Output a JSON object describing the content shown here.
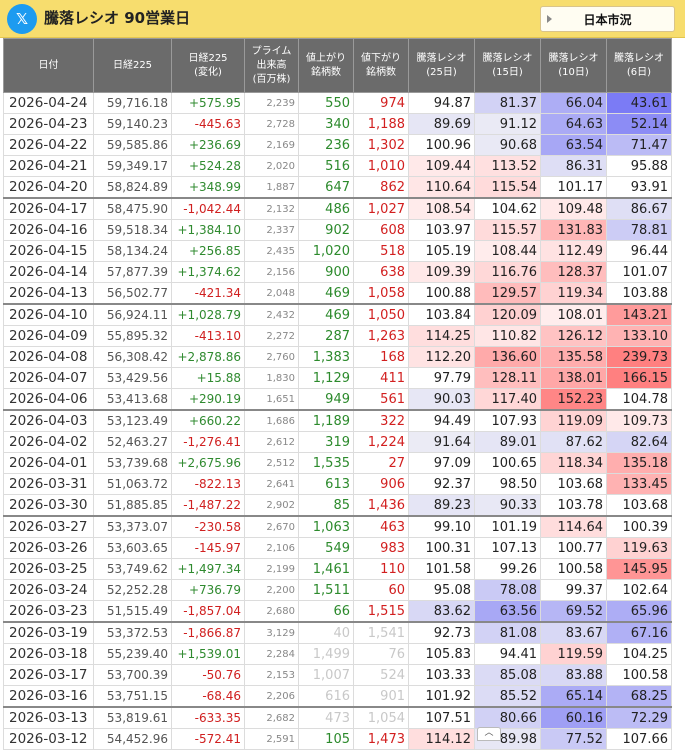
{
  "header": {
    "logo_glyph": "𝕏",
    "title": "騰落レシオ 90営業日",
    "market_select": "日本市況"
  },
  "columns": [
    [
      "日付"
    ],
    [
      "日経225"
    ],
    [
      "日経225",
      "(変化)"
    ],
    [
      "プライム",
      "出来高",
      "(百万株)"
    ],
    [
      "値上がり",
      "銘柄数"
    ],
    [
      "値下がり",
      "銘柄数"
    ],
    [
      "騰落レシオ",
      "(25日)"
    ],
    [
      "騰落レシオ",
      "(15日)"
    ],
    [
      "騰落レシオ",
      "(10日)"
    ],
    [
      "騰落レシオ",
      "(6日)"
    ]
  ],
  "rows": [
    [
      "2026-04-24",
      "59,716.18",
      "+575.95",
      "2,239",
      "550",
      "974",
      "94.87",
      "81.37",
      "66.04",
      "43.61"
    ],
    [
      "2026-04-23",
      "59,140.23",
      "-445.63",
      "2,728",
      "340",
      "1,188",
      "89.69",
      "91.12",
      "64.63",
      "52.14"
    ],
    [
      "2026-04-22",
      "59,585.86",
      "+236.69",
      "2,169",
      "236",
      "1,302",
      "100.96",
      "90.68",
      "63.54",
      "71.47"
    ],
    [
      "2026-04-21",
      "59,349.17",
      "+524.28",
      "2,020",
      "516",
      "1,010",
      "109.44",
      "113.52",
      "86.31",
      "95.88"
    ],
    [
      "2026-04-20",
      "58,824.89",
      "+348.99",
      "1,887",
      "647",
      "862",
      "110.64",
      "115.54",
      "101.17",
      "93.91"
    ],
    [
      "2026-04-17",
      "58,475.90",
      "-1,042.44",
      "2,132",
      "486",
      "1,027",
      "108.54",
      "104.62",
      "109.48",
      "86.67"
    ],
    [
      "2026-04-16",
      "59,518.34",
      "+1,384.10",
      "2,337",
      "902",
      "608",
      "103.97",
      "115.57",
      "131.83",
      "78.81"
    ],
    [
      "2026-04-15",
      "58,134.24",
      "+256.85",
      "2,435",
      "1,020",
      "518",
      "105.19",
      "108.44",
      "112.49",
      "96.44"
    ],
    [
      "2026-04-14",
      "57,877.39",
      "+1,374.62",
      "2,156",
      "900",
      "638",
      "109.39",
      "116.76",
      "128.37",
      "101.07"
    ],
    [
      "2026-04-13",
      "56,502.77",
      "-421.34",
      "2,048",
      "469",
      "1,058",
      "100.88",
      "129.57",
      "119.34",
      "103.88"
    ],
    [
      "2026-04-10",
      "56,924.11",
      "+1,028.79",
      "2,432",
      "469",
      "1,050",
      "103.84",
      "120.09",
      "108.01",
      "143.21"
    ],
    [
      "2026-04-09",
      "55,895.32",
      "-413.10",
      "2,272",
      "287",
      "1,263",
      "114.25",
      "110.82",
      "126.12",
      "133.10"
    ],
    [
      "2026-04-08",
      "56,308.42",
      "+2,878.86",
      "2,760",
      "1,383",
      "168",
      "112.20",
      "136.60",
      "135.58",
      "239.73"
    ],
    [
      "2026-04-07",
      "53,429.56",
      "+15.88",
      "1,830",
      "1,129",
      "411",
      "97.79",
      "128.11",
      "138.01",
      "166.15"
    ],
    [
      "2026-04-06",
      "53,413.68",
      "+290.19",
      "1,651",
      "949",
      "561",
      "90.03",
      "117.40",
      "152.23",
      "104.78"
    ],
    [
      "2026-04-03",
      "53,123.49",
      "+660.22",
      "1,686",
      "1,189",
      "322",
      "94.49",
      "107.93",
      "119.09",
      "109.73"
    ],
    [
      "2026-04-02",
      "52,463.27",
      "-1,276.41",
      "2,612",
      "319",
      "1,224",
      "91.64",
      "89.01",
      "87.62",
      "82.64"
    ],
    [
      "2026-04-01",
      "53,739.68",
      "+2,675.96",
      "2,512",
      "1,535",
      "27",
      "97.09",
      "100.65",
      "118.34",
      "135.18"
    ],
    [
      "2026-03-31",
      "51,063.72",
      "-822.13",
      "2,641",
      "613",
      "906",
      "92.37",
      "98.50",
      "103.68",
      "133.45"
    ],
    [
      "2026-03-30",
      "51,885.85",
      "-1,487.22",
      "2,902",
      "85",
      "1,436",
      "89.23",
      "90.33",
      "103.78",
      "103.68"
    ],
    [
      "2026-03-27",
      "53,373.07",
      "-230.58",
      "2,670",
      "1,063",
      "463",
      "99.10",
      "101.19",
      "114.64",
      "100.39"
    ],
    [
      "2026-03-26",
      "53,603.65",
      "-145.97",
      "2,106",
      "549",
      "983",
      "100.31",
      "107.13",
      "100.77",
      "119.63"
    ],
    [
      "2026-03-25",
      "53,749.62",
      "+1,497.34",
      "2,199",
      "1,461",
      "110",
      "101.58",
      "99.26",
      "100.58",
      "145.95"
    ],
    [
      "2026-03-24",
      "52,252.28",
      "+736.79",
      "2,200",
      "1,511",
      "60",
      "95.08",
      "78.08",
      "99.37",
      "102.64"
    ],
    [
      "2026-03-23",
      "51,515.49",
      "-1,857.04",
      "2,680",
      "66",
      "1,515",
      "83.62",
      "63.56",
      "69.52",
      "65.96"
    ],
    [
      "2026-03-19",
      "53,372.53",
      "-1,866.87",
      "3,129",
      "40",
      "1,541",
      "92.73",
      "81.08",
      "83.67",
      "67.16"
    ],
    [
      "2026-03-18",
      "55,239.40",
      "+1,539.01",
      "2,284",
      "1,499",
      "76",
      "105.83",
      "94.41",
      "119.59",
      "104.25"
    ],
    [
      "2026-03-17",
      "53,700.39",
      "-50.76",
      "2,153",
      "1,007",
      "524",
      "103.33",
      "85.08",
      "83.88",
      "100.58"
    ],
    [
      "2026-03-16",
      "53,751.15",
      "-68.46",
      "2,206",
      "616",
      "901",
      "101.92",
      "85.52",
      "65.14",
      "68.25"
    ],
    [
      "2026-03-13",
      "53,819.61",
      "-633.35",
      "2,682",
      "473",
      "1,054",
      "107.51",
      "80.66",
      "60.16",
      "72.29"
    ],
    [
      "2026-03-12",
      "54,452.96",
      "-572.41",
      "2,591",
      "105",
      "1,473",
      "114.12",
      "89.98",
      "77.52",
      "107.66"
    ]
  ],
  "colors": {
    "header_bar": "#f7dd6e",
    "table_header": "#6b6b6b",
    "up_text": "#2c8a2c",
    "down_text": "#d21f1f",
    "ratio_high": "#f08080",
    "ratio_low": "#7b7bf5"
  },
  "scroll_glyph": "︿"
}
